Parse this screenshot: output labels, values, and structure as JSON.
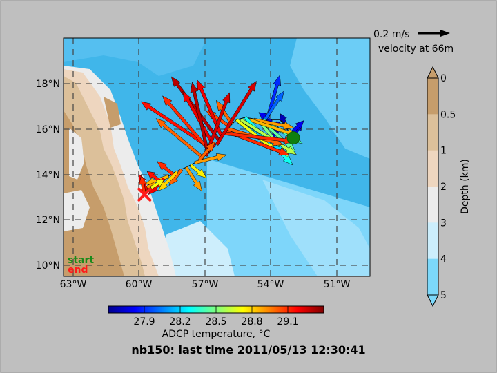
{
  "figure": {
    "title": "nb150: last time 2011/05/13 12:30:41",
    "background": "#bfbfbf"
  },
  "chart_data": {
    "type": "map-quiver",
    "x_ticks": [
      "63°W",
      "60°W",
      "57°W",
      "54°W",
      "51°W"
    ],
    "y_ticks": [
      "10°N",
      "12°N",
      "14°N",
      "16°N",
      "18°N"
    ],
    "lon_range": [
      -63.5,
      -49.5
    ],
    "lat_range": [
      9.5,
      20
    ],
    "grid": true,
    "start_label": "start",
    "end_label": "end",
    "start_color": "#1a8a1a",
    "end_color": "#ff1a1a",
    "start_point": [
      -53.0,
      15.6
    ],
    "end_point": [
      -59.8,
      13.1
    ],
    "track": [
      [
        -53.0,
        15.6
      ],
      [
        -53.6,
        16.4
      ],
      [
        -54.2,
        16.4
      ],
      [
        -54.6,
        16.4
      ],
      [
        -55.2,
        16.5
      ],
      [
        -55.6,
        16.4
      ],
      [
        -55.9,
        16.1
      ],
      [
        -56.4,
        15.5
      ],
      [
        -56.8,
        15.0
      ],
      [
        -57.3,
        14.6
      ],
      [
        -57.9,
        14.3
      ],
      [
        -58.4,
        14.1
      ],
      [
        -58.9,
        13.8
      ],
      [
        -59.4,
        13.5
      ],
      [
        -59.8,
        13.1
      ]
    ],
    "reference_vector": {
      "label": "0.2 m/s",
      "caption": "velocity at 66m",
      "speed": 0.2
    },
    "vectors": [
      {
        "lon": -53.0,
        "lat": 15.6,
        "u": 0.05,
        "v": 0.1,
        "t": 27.75
      },
      {
        "lon": -53.1,
        "lat": 15.8,
        "u": 0.08,
        "v": 0.08,
        "t": 27.8
      },
      {
        "lon": -53.3,
        "lat": 16.1,
        "u": -0.04,
        "v": 0.08,
        "t": 27.7
      },
      {
        "lon": -53.7,
        "lat": 16.3,
        "u": -0.03,
        "v": -0.1,
        "t": 27.75
      },
      {
        "lon": -54.0,
        "lat": 16.3,
        "u": -0.08,
        "v": 0.06,
        "t": 27.8
      },
      {
        "lon": -54.2,
        "lat": 16.4,
        "u": 0.08,
        "v": 0.28,
        "t": 27.9
      },
      {
        "lon": -54.3,
        "lat": 16.4,
        "u": 0.12,
        "v": 0.18,
        "t": 28.0
      },
      {
        "lon": -54.4,
        "lat": 16.4,
        "u": 0.25,
        "v": -0.15,
        "t": 28.4
      },
      {
        "lon": -54.5,
        "lat": 16.4,
        "u": 0.22,
        "v": -0.2,
        "t": 28.45
      },
      {
        "lon": -54.6,
        "lat": 16.4,
        "u": 0.2,
        "v": -0.25,
        "t": 28.5
      },
      {
        "lon": -54.8,
        "lat": 16.4,
        "u": 0.25,
        "v": -0.05,
        "t": 28.9
      },
      {
        "lon": -55.0,
        "lat": 16.4,
        "u": 0.3,
        "v": -0.1,
        "t": 28.85
      },
      {
        "lon": -55.2,
        "lat": 16.5,
        "u": 0.3,
        "v": -0.3,
        "t": 28.3
      },
      {
        "lon": -55.4,
        "lat": 16.4,
        "u": 0.35,
        "v": -0.22,
        "t": 28.6
      },
      {
        "lon": -55.5,
        "lat": 16.3,
        "u": 0.3,
        "v": -0.2,
        "t": 28.2
      },
      {
        "lon": -55.6,
        "lat": 16.4,
        "u": 0.25,
        "v": -0.2,
        "t": 28.7
      },
      {
        "lon": -55.8,
        "lat": 16.2,
        "u": -0.1,
        "v": 0.15,
        "t": 29.0
      },
      {
        "lon": -55.9,
        "lat": 16.1,
        "u": -0.15,
        "v": 0.1,
        "t": 29.05
      },
      {
        "lon": -56.0,
        "lat": 16.0,
        "u": 0.35,
        "v": -0.1,
        "t": 29.0
      },
      {
        "lon": -56.1,
        "lat": 15.9,
        "u": 0.4,
        "v": -0.15,
        "t": 29.1
      },
      {
        "lon": -56.2,
        "lat": 15.8,
        "u": 0.45,
        "v": -0.05,
        "t": 29.1
      },
      {
        "lon": -56.3,
        "lat": 15.7,
        "u": -0.15,
        "v": 0.35,
        "t": 29.2
      },
      {
        "lon": -56.4,
        "lat": 15.5,
        "u": -0.3,
        "v": 0.4,
        "t": 29.3
      },
      {
        "lon": -56.5,
        "lat": 15.3,
        "u": 0.25,
        "v": 0.4,
        "t": 29.25
      },
      {
        "lon": -56.6,
        "lat": 15.2,
        "u": -0.2,
        "v": 0.35,
        "t": 29.2
      },
      {
        "lon": -56.7,
        "lat": 15.1,
        "u": -0.45,
        "v": 0.3,
        "t": 29.15
      },
      {
        "lon": -56.8,
        "lat": 15.0,
        "u": -0.3,
        "v": 0.35,
        "t": 29.1
      },
      {
        "lon": -56.9,
        "lat": 14.9,
        "u": -0.1,
        "v": 0.45,
        "t": 29.3
      },
      {
        "lon": -57.0,
        "lat": 14.8,
        "u": 0.15,
        "v": 0.4,
        "t": 29.25
      },
      {
        "lon": -57.1,
        "lat": 14.7,
        "u": -0.3,
        "v": 0.25,
        "t": 29.0
      },
      {
        "lon": -57.3,
        "lat": 14.6,
        "u": 0.1,
        "v": 0.12,
        "t": 29.0
      },
      {
        "lon": -57.5,
        "lat": 14.5,
        "u": 0.2,
        "v": 0.05,
        "t": 28.9
      },
      {
        "lon": -57.7,
        "lat": 14.4,
        "u": 0.1,
        "v": -0.08,
        "t": 28.75
      },
      {
        "lon": -57.9,
        "lat": 14.3,
        "u": 0.1,
        "v": -0.15,
        "t": 28.9
      },
      {
        "lon": -58.1,
        "lat": 14.2,
        "u": -0.08,
        "v": -0.1,
        "t": 29.0
      },
      {
        "lon": -58.3,
        "lat": 14.1,
        "u": -0.12,
        "v": -0.12,
        "t": 28.8
      },
      {
        "lon": -58.5,
        "lat": 14.0,
        "u": -0.1,
        "v": 0.08,
        "t": 29.1
      },
      {
        "lon": -58.7,
        "lat": 13.9,
        "u": -0.15,
        "v": -0.05,
        "t": 28.85
      },
      {
        "lon": -58.9,
        "lat": 13.8,
        "u": -0.1,
        "v": -0.1,
        "t": 29.2
      },
      {
        "lon": -59.1,
        "lat": 13.7,
        "u": -0.08,
        "v": 0.06,
        "t": 29.15
      },
      {
        "lon": -59.3,
        "lat": 13.6,
        "u": -0.1,
        "v": -0.05,
        "t": 28.9
      },
      {
        "lon": -59.5,
        "lat": 13.4,
        "u": 0.08,
        "v": 0.05,
        "t": 28.7
      },
      {
        "lon": -59.7,
        "lat": 13.3,
        "u": -0.05,
        "v": 0.1,
        "t": 29.2
      },
      {
        "lon": -59.8,
        "lat": 13.1,
        "u": -0.02,
        "v": 0.12,
        "t": 29.1
      }
    ],
    "temperature_colorbar": {
      "label": "ADCP temperature, °C",
      "ticks": [
        "27.9",
        "28.2",
        "28.5",
        "28.8",
        "29.1"
      ],
      "tick_values": [
        27.9,
        28.2,
        28.5,
        28.8,
        29.1
      ],
      "range": [
        27.6,
        29.4
      ]
    },
    "depth_colorbar": {
      "label": "Depth (km)",
      "ticks": [
        "0",
        "0.5",
        "1",
        "2",
        "3",
        "4",
        "5"
      ],
      "colors": [
        "#c69d6b",
        "#dcc09a",
        "#eed6bf",
        "#ececec",
        "#cceefc",
        "#7cd8fa"
      ]
    }
  }
}
